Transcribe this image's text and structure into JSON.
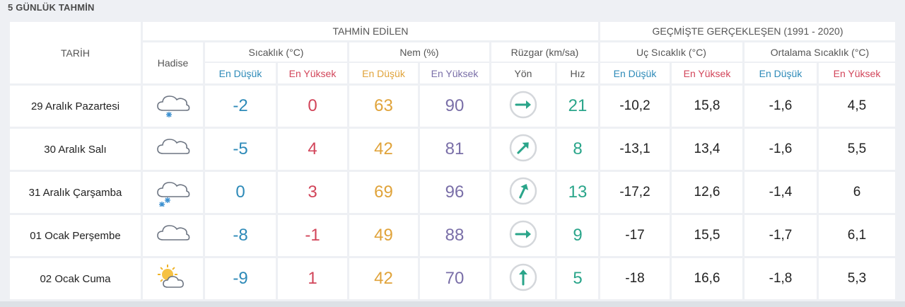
{
  "title": "5 GÜNLÜK TAHMİN",
  "header": {
    "tarih": "TARİH",
    "tahmin": "TAHMİN EDİLEN",
    "gecmis": "GEÇMİŞTE GERÇEKLEŞEN (1991 - 2020)",
    "hadise": "Hadise",
    "sicaklik": "Sıcaklık (°C)",
    "nem": "Nem (%)",
    "ruzgar": "Rüzgar (km/sa)",
    "uc": "Uç Sıcaklık (°C)",
    "ortalama": "Ortalama Sıcaklık (°C)",
    "en_dusuk": "En Düşük",
    "en_yuksek": "En Yüksek",
    "yon": "Yön",
    "hiz": "Hız"
  },
  "colors": {
    "min": "#2d8ab8",
    "max": "#d2455a",
    "nem_min": "#e0a33a",
    "nem_max": "#7a6fa8",
    "wind": "#2aa58a"
  },
  "rows": [
    {
      "date": "29 Aralık Pazartesi",
      "icon": "cloud-snow-icon",
      "t_min": "-2",
      "t_max": "0",
      "nem_min": "63",
      "nem_max": "90",
      "wind_dir_deg": 90,
      "wind_speed": "21",
      "uc_min": "-10,2",
      "uc_max": "15,8",
      "ort_min": "-1,6",
      "ort_max": "4,5"
    },
    {
      "date": "30 Aralık Salı",
      "icon": "cloud-icon",
      "t_min": "-5",
      "t_max": "4",
      "nem_min": "42",
      "nem_max": "81",
      "wind_dir_deg": 45,
      "wind_speed": "8",
      "uc_min": "-13,1",
      "uc_max": "13,4",
      "ort_min": "-1,6",
      "ort_max": "5,5"
    },
    {
      "date": "31 Aralık Çarşamba",
      "icon": "cloud-heavy-snow-icon",
      "t_min": "0",
      "t_max": "3",
      "nem_min": "69",
      "nem_max": "96",
      "wind_dir_deg": 25,
      "wind_speed": "13",
      "uc_min": "-17,2",
      "uc_max": "12,6",
      "ort_min": "-1,4",
      "ort_max": "6"
    },
    {
      "date": "01 Ocak Perşembe",
      "icon": "cloud-icon",
      "t_min": "-8",
      "t_max": "-1",
      "nem_min": "49",
      "nem_max": "88",
      "wind_dir_deg": 90,
      "wind_speed": "9",
      "uc_min": "-17",
      "uc_max": "15,5",
      "ort_min": "-1,7",
      "ort_max": "6,1"
    },
    {
      "date": "02 Ocak Cuma",
      "icon": "sun-cloud-icon",
      "t_min": "-9",
      "t_max": "1",
      "nem_min": "42",
      "nem_max": "70",
      "wind_dir_deg": 0,
      "wind_speed": "5",
      "uc_min": "-18",
      "uc_max": "16,6",
      "ort_min": "-1,8",
      "ort_max": "5,3"
    }
  ]
}
